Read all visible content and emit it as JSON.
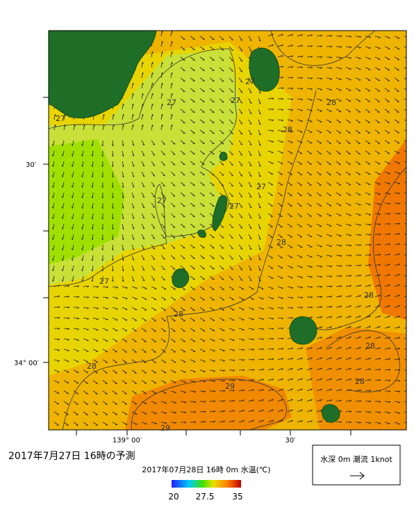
{
  "axes": {
    "left_labels": [
      "30′",
      "34° 00′"
    ],
    "bottom_labels": [
      "139° 00′",
      "30′"
    ]
  },
  "contour_labels": [
    "27",
    "27",
    "27",
    "27",
    "28",
    "28",
    "27",
    "27",
    "27",
    "28",
    "27",
    "28",
    "28",
    "28",
    "28",
    "28",
    "29",
    "29"
  ],
  "title": "2017年7月27日  16時の予測",
  "subtitle": "2017年07月28日 16時 0m 水温(℃)",
  "colorbar": {
    "labels": [
      "20",
      "27.5",
      "35"
    ]
  },
  "legend": {
    "label": "水深 0m 潮流 1knot"
  }
}
